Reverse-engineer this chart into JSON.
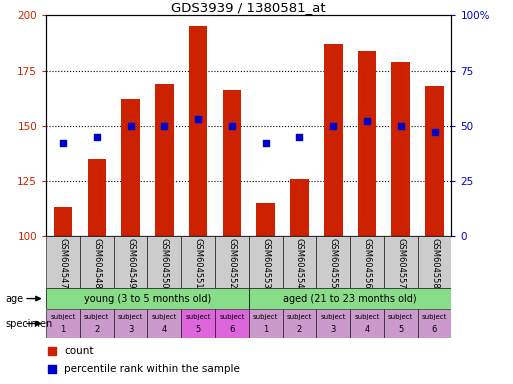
{
  "title": "GDS3939 / 1380581_at",
  "samples": [
    "GSM604547",
    "GSM604548",
    "GSM604549",
    "GSM604550",
    "GSM604551",
    "GSM604552",
    "GSM604553",
    "GSM604554",
    "GSM604555",
    "GSM604556",
    "GSM604557",
    "GSM604558"
  ],
  "bar_values": [
    113,
    135,
    162,
    169,
    195,
    166,
    115,
    126,
    187,
    184,
    179,
    168
  ],
  "dot_values": [
    42,
    45,
    50,
    50,
    53,
    50,
    42,
    45,
    50,
    52,
    50,
    47
  ],
  "ylim_left": [
    100,
    200
  ],
  "ylim_right": [
    0,
    100
  ],
  "yticks_left": [
    100,
    125,
    150,
    175,
    200
  ],
  "yticks_right": [
    0,
    25,
    50,
    75,
    100
  ],
  "ytick_labels_right": [
    "0",
    "25",
    "50",
    "75",
    "100%"
  ],
  "bar_color": "#cc2200",
  "dot_color": "#0000cc",
  "bg_color": "#ffffff",
  "age_young_label": "young (3 to 5 months old)",
  "age_aged_label": "aged (21 to 23 months old)",
  "age_young_color": "#88dd88",
  "age_aged_color": "#88dd88",
  "spec_colors": [
    "#cc99cc",
    "#cc99cc",
    "#cc99cc",
    "#cc99cc",
    "#dd66dd",
    "#dd66dd",
    "#cc99cc",
    "#cc99cc",
    "#cc99cc",
    "#cc99cc",
    "#cc99cc",
    "#cc99cc"
  ],
  "specimen_numbers": [
    "1",
    "2",
    "3",
    "4",
    "5",
    "6",
    "1",
    "2",
    "3",
    "4",
    "5",
    "6"
  ],
  "age_label": "age",
  "specimen_label": "specimen",
  "legend_count": "count",
  "legend_percentile": "percentile rank within the sample",
  "tick_color_left": "#cc2200",
  "tick_color_right": "#0000cc",
  "xtick_bg": "#cccccc",
  "grid_yticks": [
    125,
    150,
    175
  ]
}
